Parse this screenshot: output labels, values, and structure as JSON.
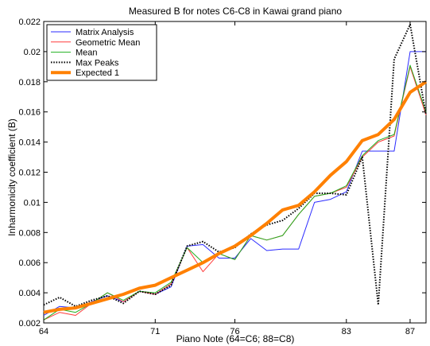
{
  "chart_data": {
    "type": "line",
    "title": "Measured B for notes C6-C8 in Kawai grand piano",
    "xlabel": "Piano Note (64=C6; 88=C8)",
    "ylabel": "Inharmonicity coefficient (B)",
    "xlim": [
      64,
      88
    ],
    "ylim": [
      0.002,
      0.022
    ],
    "xticks": [
      64,
      71,
      76,
      83,
      87
    ],
    "xtick_labels": [
      "64",
      "71",
      "76",
      "83",
      "87"
    ],
    "yticks": [
      0.002,
      0.004,
      0.006,
      0.008,
      0.01,
      0.012,
      0.014,
      0.016,
      0.018,
      0.02,
      0.022
    ],
    "ytick_labels": [
      "0.002",
      "0.004",
      "0.006",
      "0.008",
      "0.01",
      "0.012",
      "0.014",
      "0.016",
      "0.018",
      "0.02",
      "0.022"
    ],
    "grid": false,
    "legend_position": "top-left",
    "x": [
      64,
      65,
      66,
      67,
      68,
      69,
      70,
      71,
      72,
      73,
      74,
      75,
      76,
      77,
      78,
      79,
      80,
      81,
      82,
      83,
      84,
      85,
      86,
      87,
      88
    ],
    "series": [
      {
        "name": "Matrix Analysis",
        "color": "#2b2bff",
        "style": "solid",
        "width": 1,
        "values": [
          0.0025,
          0.0031,
          0.003,
          0.0034,
          0.0038,
          0.0034,
          0.0041,
          0.0039,
          0.0044,
          0.0071,
          0.0072,
          0.0063,
          0.0063,
          0.0076,
          0.0068,
          0.0069,
          0.0069,
          0.01,
          0.0102,
          0.0107,
          0.0134,
          0.0134,
          0.0134,
          0.02,
          0.02
        ]
      },
      {
        "name": "Geometric Mean",
        "color": "#ff3b3b",
        "style": "solid",
        "width": 1,
        "values": [
          0.0022,
          0.0027,
          0.0025,
          0.0033,
          0.004,
          0.0034,
          0.0041,
          0.0039,
          0.0046,
          0.007,
          0.0054,
          0.0066,
          0.0062,
          0.0078,
          0.0075,
          0.0078,
          0.0092,
          0.0104,
          0.0106,
          0.011,
          0.013,
          0.014,
          0.0144,
          0.019,
          0.0158
        ]
      },
      {
        "name": "Mean",
        "color": "#20b020",
        "style": "solid",
        "width": 1,
        "values": [
          0.0022,
          0.0029,
          0.0027,
          0.0033,
          0.004,
          0.0035,
          0.0041,
          0.004,
          0.0047,
          0.007,
          0.006,
          0.0066,
          0.0062,
          0.0078,
          0.0075,
          0.0078,
          0.0092,
          0.0104,
          0.0106,
          0.0111,
          0.0131,
          0.0141,
          0.0145,
          0.0191,
          0.016
        ]
      },
      {
        "name": "Max Peaks",
        "color": "#000000",
        "style": "dotted",
        "width": 2,
        "values": [
          0.0032,
          0.0037,
          0.0031,
          0.0035,
          0.0038,
          0.0033,
          0.0041,
          0.0039,
          0.0045,
          0.0071,
          0.0074,
          0.0067,
          0.007,
          0.0079,
          0.0085,
          0.0088,
          0.0096,
          0.0106,
          0.0106,
          0.0105,
          0.013,
          0.0032,
          0.0195,
          0.0218,
          0.0158
        ]
      },
      {
        "name": "Expected 1",
        "color": "#ff8000",
        "style": "solid",
        "width": 4,
        "values": [
          0.0027,
          0.0029,
          0.003,
          0.0033,
          0.0036,
          0.0039,
          0.0043,
          0.0045,
          0.005,
          0.0055,
          0.006,
          0.0066,
          0.0071,
          0.0078,
          0.0086,
          0.0095,
          0.0098,
          0.0107,
          0.0118,
          0.0127,
          0.0141,
          0.0145,
          0.0155,
          0.0173,
          0.018
        ]
      }
    ]
  }
}
